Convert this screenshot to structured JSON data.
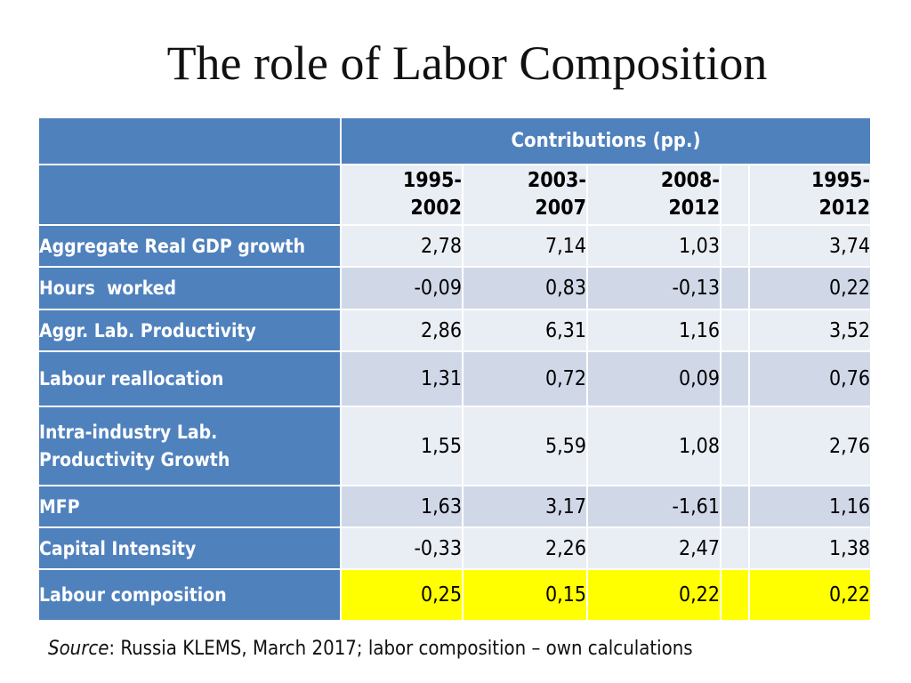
{
  "title": "The role of Labor Composition",
  "table": {
    "group_header": "Contributions (pp.)",
    "columns": [
      {
        "line1": "1995-",
        "line2": "2002"
      },
      {
        "line1": "2003-",
        "line2": "2007"
      },
      {
        "line1": "2008-",
        "line2": "2012"
      },
      {
        "line1": "1995-",
        "line2": "2012"
      }
    ],
    "rows": [
      {
        "label": "Aggregate Real GDP growth",
        "values": [
          "2,78",
          "7,14",
          "1,03",
          "3,74"
        ]
      },
      {
        "label": "Hours  worked",
        "values": [
          "-0,09",
          "0,83",
          "-0,13",
          "0,22"
        ]
      },
      {
        "label": "Aggr. Lab. Productivity",
        "values": [
          "2,86",
          "6,31",
          "1,16",
          "3,52"
        ]
      },
      {
        "label": "Labour reallocation",
        "values": [
          "1,31",
          "0,72",
          "0,09",
          "0,76"
        ]
      },
      {
        "label_line1": "Intra-industry Lab.",
        "label_line2": "Productivity Growth",
        "values": [
          "1,55",
          "5,59",
          "1,08",
          "2,76"
        ]
      },
      {
        "label": "MFP",
        "values": [
          "1,63",
          "3,17",
          "-1,61",
          "1,16"
        ]
      },
      {
        "label": "Capital Intensity",
        "values": [
          "-0,33",
          "2,26",
          "2,47",
          "1,38"
        ]
      },
      {
        "label": "Labour composition",
        "values": [
          "0,25",
          "0,15",
          "0,22",
          "0,22"
        ]
      }
    ],
    "colors": {
      "header_blue": "#4f81bd",
      "row_light": "#e9edf4",
      "row_dark": "#d0d8e8",
      "highlight": "#ffff00"
    }
  },
  "source": {
    "prefix": "Source",
    "text": ": Russia KLEMS, March 2017; labor composition – own calculations"
  }
}
